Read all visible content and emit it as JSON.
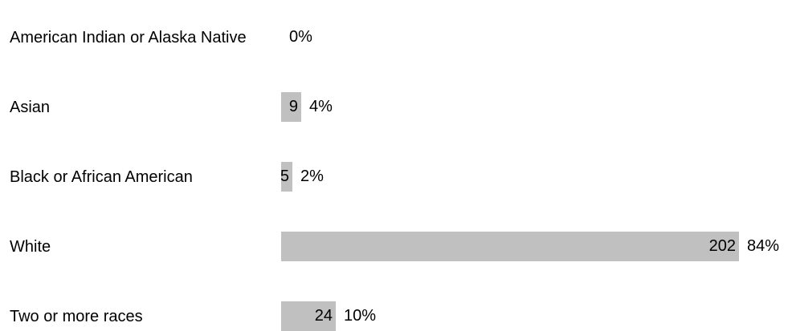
{
  "chart_data": {
    "type": "bar",
    "orientation": "horizontal",
    "categories": [
      "American Indian or Alaska Native",
      "Asian",
      "Black or African American",
      "White",
      "Two or more races"
    ],
    "values": [
      0,
      9,
      5,
      202,
      24
    ],
    "percent_labels": [
      "0%",
      "4%",
      "2%",
      "84%",
      "10%"
    ],
    "title": "",
    "xlabel": "",
    "ylabel": "",
    "xlim": [
      0,
      202
    ],
    "grid": false,
    "legend": "none",
    "bar_color": "#c0c0c0"
  }
}
